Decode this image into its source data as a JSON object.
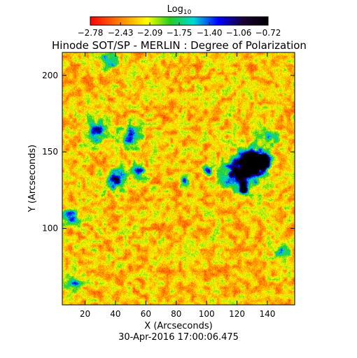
{
  "chart_data": {
    "type": "heatmap",
    "title": "Hinode SOT/SP - MERLIN : Degree of Polarization",
    "colorbar": {
      "label_base": "Log",
      "label_sub": "10",
      "min": -2.78,
      "max": -0.72,
      "tick_labels": [
        "−2.78",
        "−2.43",
        "−2.09",
        "−1.75",
        "−1.40",
        "−1.06",
        "−0.72"
      ],
      "tick_values": [
        -2.78,
        -2.43,
        -2.09,
        -1.75,
        -1.4,
        -1.06,
        -0.72
      ]
    },
    "xlabel": "X (Arcseconds)",
    "ylabel": "Y (Arcseconds)",
    "xlim": [
      5,
      158
    ],
    "ylim": [
      50,
      215
    ],
    "xticks": [
      20,
      40,
      60,
      80,
      100,
      120,
      140
    ],
    "yticks": [
      100,
      150,
      200
    ],
    "colormap": [
      "#ff0000",
      "#ff8c00",
      "#ffff00",
      "#22cc22",
      "#00d8d8",
      "#0000ff",
      "#1a0033",
      "#000000"
    ],
    "features": [
      {
        "x": 130,
        "y": 143,
        "r": 8,
        "level": 1.0
      },
      {
        "x": 137,
        "y": 145,
        "r": 5,
        "level": 1.0
      },
      {
        "x": 124,
        "y": 126,
        "r": 3,
        "level": 0.95
      },
      {
        "x": 126,
        "y": 138,
        "r": 12,
        "level": 0.6
      },
      {
        "x": 118,
        "y": 135,
        "r": 8,
        "level": 0.5
      },
      {
        "x": 40,
        "y": 132,
        "r": 7,
        "level": 0.55
      },
      {
        "x": 28,
        "y": 163,
        "r": 8,
        "level": 0.45
      },
      {
        "x": 50,
        "y": 160,
        "r": 8,
        "level": 0.45
      },
      {
        "x": 55,
        "y": 138,
        "r": 5,
        "level": 0.45
      },
      {
        "x": 85,
        "y": 131,
        "r": 3,
        "level": 0.6
      },
      {
        "x": 100,
        "y": 138,
        "r": 4,
        "level": 0.45
      },
      {
        "x": 10,
        "y": 108,
        "r": 5,
        "level": 0.45
      },
      {
        "x": 12,
        "y": 65,
        "r": 6,
        "level": 0.45
      },
      {
        "x": 35,
        "y": 210,
        "r": 6,
        "level": 0.4
      },
      {
        "x": 140,
        "y": 160,
        "r": 7,
        "level": 0.35
      },
      {
        "x": 150,
        "y": 85,
        "r": 6,
        "level": 0.35
      }
    ],
    "timestamp": "30-Apr-2016 17:00:06.475"
  }
}
